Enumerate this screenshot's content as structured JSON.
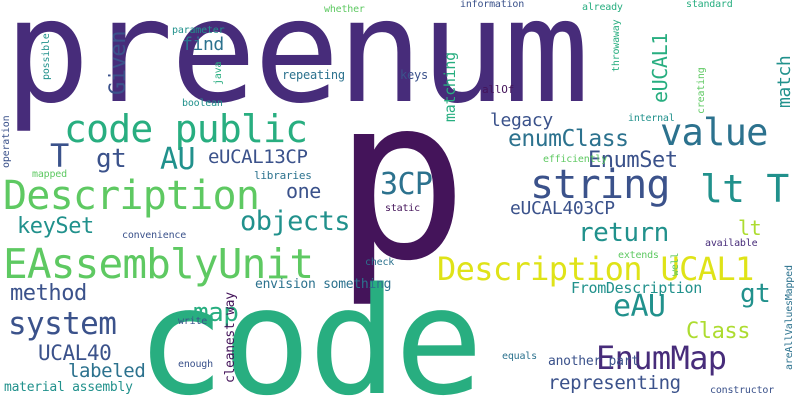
{
  "words": {
    "preenum": "preenum",
    "p": "p",
    "code": "code",
    "code_public": "code public",
    "description": "Description",
    "eassemblyunit": "EAssemblyUnit",
    "string": "string",
    "value": "value",
    "lt_t": "lt T",
    "description_ucal1": "Description UCAL1",
    "enummap": "EnumMap",
    "system": "system",
    "objects": "objects",
    "threecp": "3CP",
    "given": "Given",
    "au": "AU",
    "t": "T",
    "gt": "gt",
    "gt2": "gt",
    "eucal13cp": "eUCAL13CP",
    "enumclass": "enumClass",
    "enumset": "EnumSet",
    "eucal403cp": "eUCAL403CP",
    "return": "return",
    "eau": "eAU",
    "map": "map",
    "method": "method",
    "keyset": "keySet",
    "one": "one",
    "legacy": "legacy",
    "class": "Class",
    "ucal40": "UCAL40",
    "labeled": "labeled",
    "representing": "representing",
    "match": "match",
    "eucal1": "eUCAL1",
    "matching": "matching",
    "find": "find",
    "lt": "lt",
    "fromdescription": "FromDescription",
    "envision_something": "envision something",
    "cleanest_way": "cleanest way",
    "material_assembly": "material assembly",
    "another_part": "another part",
    "repeating": "repeating",
    "keys": "keys",
    "parameter": "parameter",
    "whether": "whether",
    "information": "information",
    "already": "already",
    "standard": "standard",
    "possible": "possible",
    "java": "java",
    "boolean": "boolean",
    "mapped": "mapped",
    "operation": "operation",
    "libraries": "libraries",
    "efficiently": "efficiently",
    "internal": "internal",
    "allof": "allOf",
    "throwaway": "throwaway",
    "creating": "creating",
    "static": "static",
    "convenience": "convenience",
    "check": "check",
    "extends": "extends",
    "well": "well",
    "available": "available",
    "areallvaluesmapped": "areAllValuesMapped",
    "write": "write",
    "enough": "enough",
    "equals": "equals",
    "constructor": "constructor"
  },
  "colors": {
    "dark_purple": "#44145a",
    "indigo": "#472c7a",
    "blue": "#3b528b",
    "steel": "#2c728e",
    "teal": "#21918c",
    "sea": "#28ae80",
    "green": "#5ec962",
    "lime": "#addc30",
    "yellow": "#dfe318"
  }
}
